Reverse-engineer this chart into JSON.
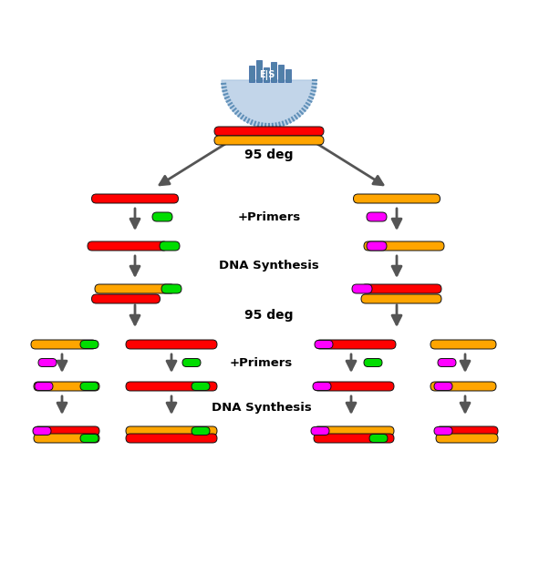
{
  "bg_color": "#ffffff",
  "colors": {
    "red": "#ff0000",
    "orange": "#ffa500",
    "green": "#00dd00",
    "magenta": "#ff00ff",
    "arrow": "#555555",
    "logo_blue": "#a8c4e0",
    "logo_dark": "#6090b8"
  },
  "labels": {
    "deg95_1": "95 deg",
    "primers1": "+Primers",
    "synthesis1": "DNA Synthesis",
    "deg95_2": "95 deg",
    "primers2": "+Primers",
    "synthesis2": "DNA Synthesis"
  },
  "figsize": [
    5.91,
    6.3
  ],
  "dpi": 100
}
